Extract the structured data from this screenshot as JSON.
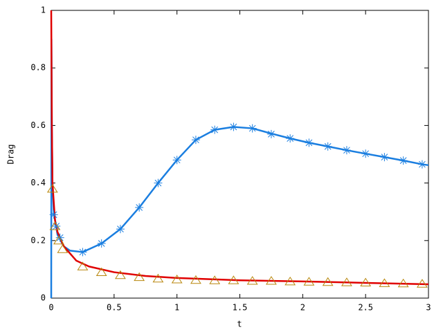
{
  "chart_data": {
    "type": "line",
    "xlabel": "t",
    "ylabel": "Drag",
    "xlim": [
      0,
      3
    ],
    "ylim": [
      0,
      1
    ],
    "xticks": [
      0,
      0.5,
      1,
      1.5,
      2,
      2.5,
      3
    ],
    "yticks": [
      0,
      0.2,
      0.4,
      0.6,
      0.8,
      1
    ],
    "grid": false,
    "series": [
      {
        "style": "line",
        "color": "#1a7ee0",
        "x": [
          0,
          0.002,
          0.005,
          0.01,
          0.02,
          0.05,
          0.1,
          0.15,
          0.25,
          0.4,
          0.55,
          0.7,
          0.85,
          1.0,
          1.15,
          1.3,
          1.45,
          1.6,
          1.75,
          1.9,
          2.05,
          2.2,
          2.35,
          2.5,
          2.65,
          2.8,
          2.95,
          3
        ],
        "values": [
          0,
          0.9,
          0.6,
          0.4,
          0.3,
          0.22,
          0.18,
          0.165,
          0.16,
          0.19,
          0.24,
          0.315,
          0.4,
          0.48,
          0.55,
          0.585,
          0.595,
          0.59,
          0.572,
          0.555,
          0.54,
          0.527,
          0.514,
          0.502,
          0.49,
          0.478,
          0.465,
          0.462
        ]
      },
      {
        "style": "line",
        "color": "#e00000",
        "x": [
          0,
          0.005,
          0.01,
          0.03,
          0.05,
          0.1,
          0.2,
          0.3,
          0.5,
          0.75,
          1,
          1.5,
          2,
          2.5,
          3
        ],
        "values": [
          1,
          0.6,
          0.4,
          0.27,
          0.23,
          0.18,
          0.13,
          0.11,
          0.09,
          0.077,
          0.07,
          0.062,
          0.058,
          0.053,
          0.048
        ]
      },
      {
        "style": "points",
        "marker": "asterisk",
        "color": "#1a7ee0",
        "x": [
          0.02,
          0.04,
          0.07,
          0.25,
          0.4,
          0.55,
          0.7,
          0.85,
          1.0,
          1.15,
          1.3,
          1.45,
          1.6,
          1.75,
          1.9,
          2.05,
          2.2,
          2.35,
          2.5,
          2.65,
          2.8,
          2.95
        ],
        "values": [
          0.29,
          0.25,
          0.21,
          0.16,
          0.19,
          0.24,
          0.315,
          0.4,
          0.48,
          0.55,
          0.585,
          0.595,
          0.59,
          0.57,
          0.555,
          0.54,
          0.527,
          0.514,
          0.502,
          0.49,
          0.478,
          0.465
        ]
      },
      {
        "style": "points",
        "marker": "triangle",
        "color": "#b8860b",
        "x": [
          0.01,
          0.03,
          0.06,
          0.09,
          0.25,
          0.4,
          0.55,
          0.7,
          0.85,
          1.0,
          1.15,
          1.3,
          1.45,
          1.6,
          1.75,
          1.9,
          2.05,
          2.2,
          2.35,
          2.5,
          2.65,
          2.8,
          2.95
        ],
        "values": [
          0.38,
          0.25,
          0.2,
          0.17,
          0.11,
          0.09,
          0.08,
          0.073,
          0.068,
          0.065,
          0.063,
          0.062,
          0.062,
          0.06,
          0.06,
          0.058,
          0.057,
          0.056,
          0.055,
          0.054,
          0.052,
          0.051,
          0.05
        ]
      }
    ]
  }
}
